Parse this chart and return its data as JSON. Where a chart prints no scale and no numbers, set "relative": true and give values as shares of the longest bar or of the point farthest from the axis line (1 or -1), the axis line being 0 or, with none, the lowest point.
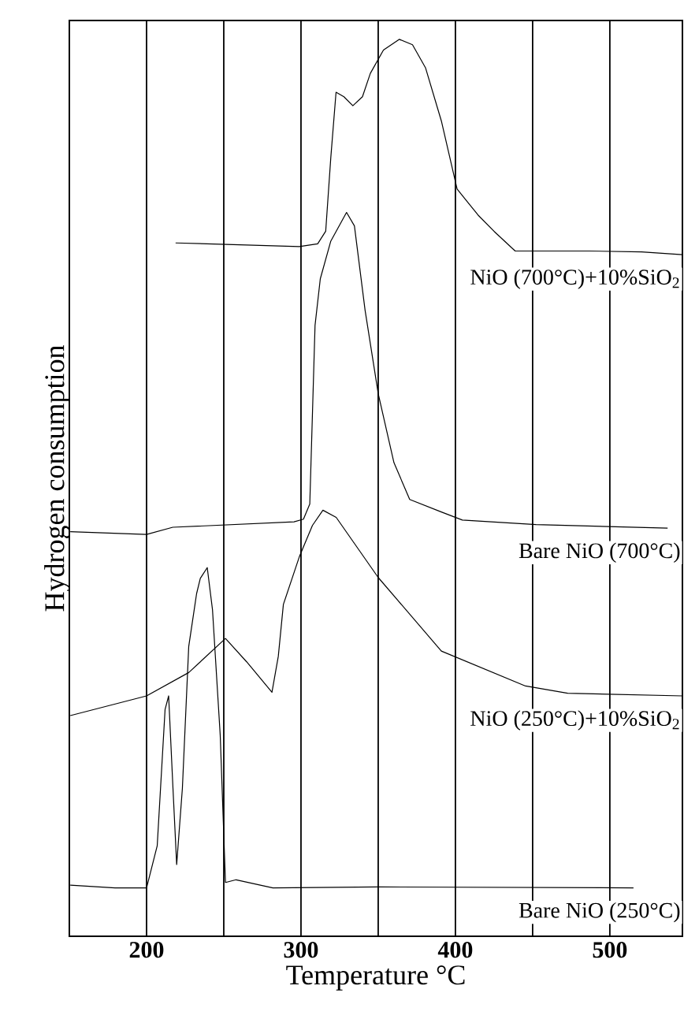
{
  "chart_data": {
    "type": "line",
    "relative": true,
    "xlabel": "Temperature °C",
    "ylabel": "Hydrogen consumption",
    "xlim": [
      150,
      547
    ],
    "xticks": [
      200,
      {
        "value": 250,
        "label": null
      },
      300,
      {
        "value": 350,
        "label": null
      },
      400,
      {
        "value": 450,
        "label": null
      },
      500
    ],
    "grid": "x",
    "marker": "none",
    "line_style": "solid",
    "series": [
      {
        "name": "NiO (700°C)+10%SiO$_{2}$",
        "color": "#000000",
        "x": [
          218.8,
          298.9,
          310.8,
          316,
          319.3,
          322.7,
          327.8,
          333.6,
          339.8,
          344.9,
          353.4,
          363.6,
          372.2,
          380.7,
          390.9,
          401.1,
          414.7,
          425,
          438.7,
          486.3,
          520.5,
          547
        ],
        "values": [
          0.773,
          0.769,
          0.772,
          0.786,
          0.868,
          0.941,
          0.936,
          0.926,
          0.936,
          0.962,
          0.988,
          1.0,
          0.994,
          0.968,
          0.909,
          0.833,
          0.804,
          0.786,
          0.764,
          0.764,
          0.763,
          0.76
        ]
      },
      {
        "name": "Bare NiO (700°C)",
        "color": "#000000",
        "x": [
          150.6,
          200,
          217,
          295.5,
          301.6,
          305.7,
          309.1,
          312.5,
          319.3,
          329.5,
          334.6,
          341.5,
          350,
          360.2,
          370.4,
          390.9,
          404.5,
          452.2,
          537.4
        ],
        "values": [
          0.451,
          0.448,
          0.456,
          0.462,
          0.465,
          0.482,
          0.681,
          0.733,
          0.775,
          0.807,
          0.792,
          0.698,
          0.605,
          0.528,
          0.487,
          0.473,
          0.464,
          0.459,
          0.455
        ]
      },
      {
        "name": "NiO (250°C)+10%SiO$_{2}$",
        "color": "#000000",
        "x": [
          150.6,
          200,
          227.3,
          251.1,
          264.8,
          281.2,
          285.3,
          288.6,
          298.9,
          307.4,
          314.2,
          322.8,
          350,
          390.9,
          445.4,
          472.7,
          547
        ],
        "values": [
          0.246,
          0.268,
          0.294,
          0.332,
          0.306,
          0.272,
          0.312,
          0.37,
          0.423,
          0.458,
          0.475,
          0.467,
          0.4,
          0.318,
          0.279,
          0.271,
          0.268
        ]
      },
      {
        "name": "Bare NiO (250°C)",
        "color": "#000000",
        "x": [
          150.6,
          179.6,
          200,
          206.9,
          212,
          214.3,
          217.1,
          219.5,
          223.2,
          227.3,
          232.4,
          234.8,
          239.3,
          242.7,
          247.7,
          251.1,
          258,
          281.8,
          350,
          515.3
        ],
        "values": [
          0.057,
          0.054,
          0.054,
          0.101,
          0.253,
          0.268,
          0.165,
          0.08,
          0.165,
          0.323,
          0.382,
          0.399,
          0.411,
          0.364,
          0.224,
          0.06,
          0.063,
          0.054,
          0.055,
          0.054
        ]
      }
    ]
  }
}
